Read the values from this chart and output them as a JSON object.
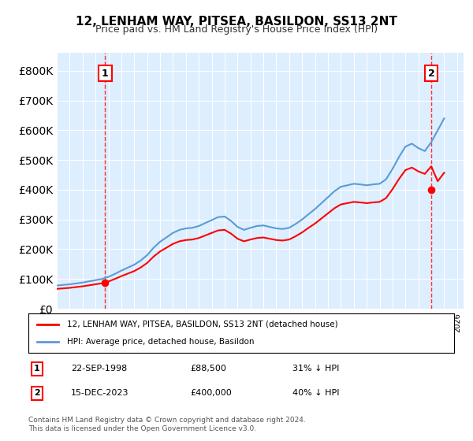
{
  "title": "12, LENHAM WAY, PITSEA, BASILDON, SS13 2NT",
  "subtitle": "Price paid vs. HM Land Registry's House Price Index (HPI)",
  "sale1_date": "22-SEP-1998",
  "sale1_price": 88500,
  "sale1_label": "1",
  "sale1_note": "31% ↓ HPI",
  "sale2_date": "15-DEC-2023",
  "sale2_price": 400000,
  "sale2_label": "2",
  "sale2_note": "40% ↓ HPI",
  "hpi_color": "#5B9BD5",
  "price_color": "#FF0000",
  "background_color": "#DDEEFF",
  "legend_label1": "12, LENHAM WAY, PITSEA, BASILDON, SS13 2NT (detached house)",
  "legend_label2": "HPI: Average price, detached house, Basildon",
  "footer": "Contains HM Land Registry data © Crown copyright and database right 2024.\nThis data is licensed under the Open Government Licence v3.0.",
  "ylim": [
    0,
    860000
  ],
  "xlim_start": 1995.0,
  "xlim_end": 2026.5
}
